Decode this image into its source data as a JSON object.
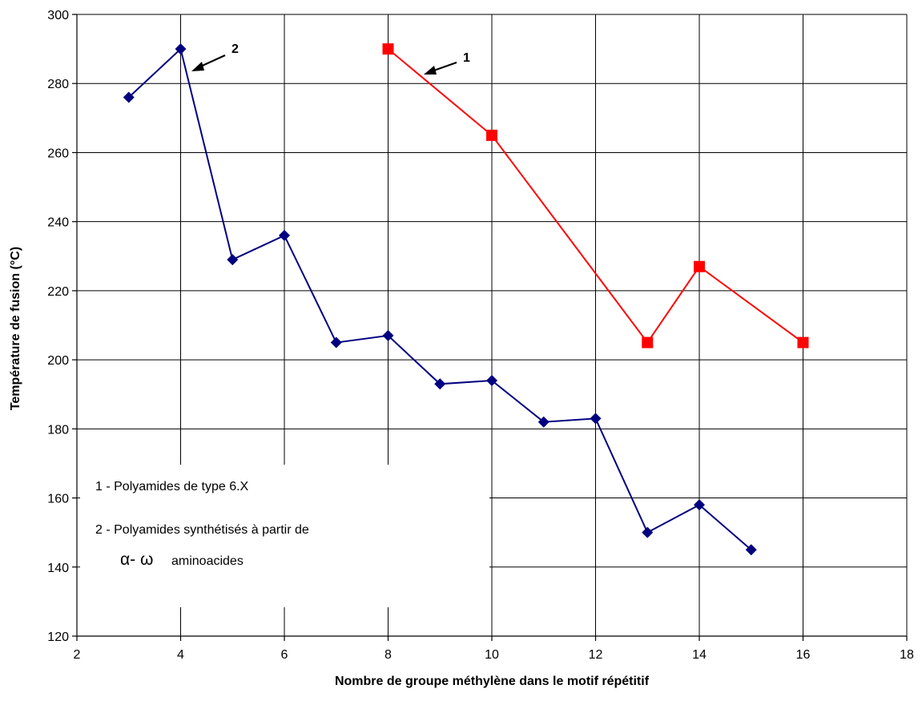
{
  "chart_data": {
    "type": "line",
    "title": "",
    "xlabel": "Nombre de groupe méthylène dans le motif répétitif",
    "ylabel": "Température de fusion (°C)",
    "xlim": [
      2,
      18
    ],
    "ylim": [
      120,
      300
    ],
    "x_ticks": [
      2,
      4,
      6,
      8,
      10,
      12,
      14,
      16,
      18
    ],
    "y_ticks": [
      120,
      140,
      160,
      180,
      200,
      220,
      240,
      260,
      280,
      300
    ],
    "grid": true,
    "series": [
      {
        "marker": "diamond",
        "color": "#000080",
        "x": [
          3,
          4,
          5,
          6,
          7,
          8,
          9,
          10,
          11,
          12,
          13,
          14,
          15
        ],
        "y": [
          276,
          290,
          229,
          236,
          205,
          207,
          193,
          194,
          182,
          183,
          150,
          158,
          145
        ]
      },
      {
        "marker": "square",
        "color": "#ff0000",
        "x": [
          8,
          10,
          13,
          14,
          16
        ],
        "y": [
          290,
          265,
          205,
          227,
          205
        ]
      }
    ],
    "legend": {
      "placement": "bottom-left",
      "line1": "1 - Polyamides de type 6.X",
      "line2": "2 - Polyamides synthétisés à partir de",
      "line3_greek": "α- ω",
      "line3_rest": "aminoacides"
    },
    "annotations": [
      {
        "label": "2",
        "points_to_series": 0,
        "x": 4,
        "y": 290
      },
      {
        "label": "1",
        "points_to_series": 1,
        "x": 8,
        "y": 290
      }
    ]
  }
}
